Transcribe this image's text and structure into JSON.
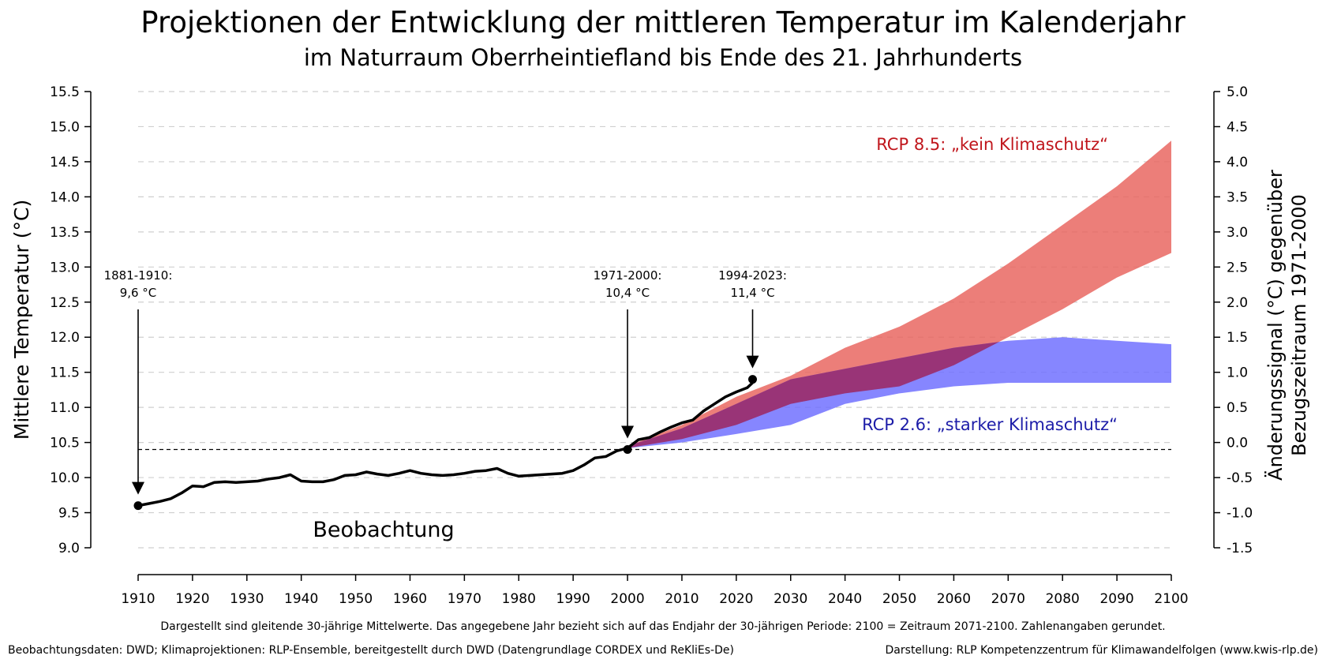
{
  "chart": {
    "title": "Projektionen der Entwicklung der mittleren Temperatur im Kalenderjahr",
    "subtitle": "im Naturraum Oberrheintiefland bis Ende des 21. Jahrhunderts",
    "footnote": "Dargestellt sind gleitende 30-jährige Mittelwerte. Das angegebene Jahr bezieht sich auf das Endjahr der 30-jährigen Periode: 2100 = Zeitraum 2071-2100. Zahlenangaben gerundet.",
    "credit_left": "Beobachtungsdaten: DWD; Klimaprojektionen: RLP-Ensemble, bereitgestellt durch DWD (Datengrundlage CORDEX und ReKliEs-De)",
    "credit_right": "Darstellung: RLP Kompetenzzentrum für Klimawandelfolgen (www.kwis-rlp.de)"
  },
  "colors": {
    "rcp85": "#e8615b",
    "rcp26": "#6b6bff",
    "overlap": "#9b2d6a",
    "observation": "#000000",
    "rcp85_label": "#c0161c",
    "rcp26_label": "#1c1ca8"
  },
  "chart_data": {
    "type": "line",
    "title": "Projektionen der Entwicklung der mittleren Temperatur im Kalenderjahr",
    "subtitle": "im Naturraum Oberrheintiefland bis Ende des 21. Jahrhunderts",
    "ylabel": "Mittlere Temperatur (°C)",
    "y2label_line1": "Änderungssignal (°C) gegenüber",
    "y2label_line2": "Bezugszeitraum 1971-2000",
    "xlim": [
      1910,
      2100
    ],
    "ylim": [
      9.0,
      15.5
    ],
    "y2lim": [
      -1.5,
      5.0
    ],
    "x_ticks": [
      "1910",
      "1920",
      "1930",
      "1940",
      "1950",
      "1960",
      "1970",
      "1980",
      "1990",
      "2000",
      "2010",
      "2020",
      "2030",
      "2040",
      "2050",
      "2060",
      "2070",
      "2080",
      "2090",
      "2100"
    ],
    "y_ticks": [
      "9.0",
      "9.5",
      "10.0",
      "10.5",
      "11.0",
      "11.5",
      "12.0",
      "12.5",
      "13.0",
      "13.5",
      "14.0",
      "14.5",
      "15.0",
      "15.5"
    ],
    "y2_ticks": [
      "-1.5",
      "-1.0",
      "-0.5",
      "0.0",
      "0.5",
      "1.0",
      "1.5",
      "2.0",
      "2.5",
      "3.0",
      "3.5",
      "4.0",
      "4.5",
      "5.0"
    ],
    "grid": "horizontal dashed",
    "reference_line": 10.4,
    "series": [
      {
        "name": "Beobachtung",
        "kind": "line",
        "x": [
          1910,
          1912,
          1914,
          1916,
          1918,
          1920,
          1922,
          1924,
          1926,
          1928,
          1930,
          1932,
          1934,
          1936,
          1938,
          1940,
          1942,
          1944,
          1946,
          1948,
          1950,
          1952,
          1954,
          1956,
          1958,
          1960,
          1962,
          1964,
          1966,
          1968,
          1970,
          1972,
          1974,
          1976,
          1978,
          1980,
          1982,
          1984,
          1986,
          1988,
          1990,
          1992,
          1994,
          1996,
          1998,
          2000,
          2002,
          2004,
          2006,
          2008,
          2010,
          2012,
          2014,
          2016,
          2018,
          2020,
          2022,
          2023
        ],
        "y": [
          9.6,
          9.63,
          9.66,
          9.7,
          9.78,
          9.88,
          9.87,
          9.93,
          9.94,
          9.93,
          9.94,
          9.95,
          9.98,
          10.0,
          10.04,
          9.95,
          9.94,
          9.94,
          9.97,
          10.03,
          10.04,
          10.08,
          10.05,
          10.03,
          10.06,
          10.1,
          10.06,
          10.04,
          10.03,
          10.04,
          10.06,
          10.09,
          10.1,
          10.13,
          10.06,
          10.02,
          10.03,
          10.04,
          10.05,
          10.06,
          10.1,
          10.18,
          10.28,
          10.3,
          10.38,
          10.42,
          10.54,
          10.57,
          10.65,
          10.72,
          10.78,
          10.82,
          10.95,
          11.05,
          11.15,
          11.22,
          11.28,
          11.35
        ]
      },
      {
        "name": "RCP 8.5: „kein Klimaschutz“",
        "kind": "band",
        "x": [
          2000,
          2010,
          2020,
          2030,
          2040,
          2050,
          2060,
          2070,
          2080,
          2090,
          2100
        ],
        "low": [
          10.42,
          10.55,
          10.75,
          11.05,
          11.2,
          11.3,
          11.6,
          12.0,
          12.4,
          12.85,
          13.2
        ],
        "high": [
          10.45,
          10.75,
          11.15,
          11.45,
          11.85,
          12.15,
          12.55,
          13.05,
          13.6,
          14.15,
          14.8
        ]
      },
      {
        "name": "RCP 2.6: „starker Klimaschutz“",
        "kind": "band",
        "x": [
          2000,
          2010,
          2020,
          2030,
          2040,
          2050,
          2060,
          2070,
          2080,
          2090,
          2100
        ],
        "low": [
          10.42,
          10.5,
          10.62,
          10.75,
          11.05,
          11.2,
          11.3,
          11.35,
          11.35,
          11.35,
          11.35
        ],
        "high": [
          10.45,
          10.7,
          11.05,
          11.4,
          11.55,
          11.7,
          11.85,
          11.95,
          12.0,
          11.95,
          11.9
        ]
      }
    ],
    "annotations": [
      {
        "label_line1": "1881-1910:",
        "label_line2": "9,6 °C",
        "x": 1910,
        "value": 9.6
      },
      {
        "label_line1": "1971-2000:",
        "label_line2": "10,4 °C",
        "x": 2000,
        "value": 10.4
      },
      {
        "label_line1": "1994-2023:",
        "label_line2": "11,4 °C",
        "x": 2023,
        "value": 11.4
      }
    ],
    "text_labels": {
      "observation": "Beobachtung",
      "rcp85": "RCP 8.5: „kein Klimaschutz“",
      "rcp26": "RCP 2.6: „starker Klimaschutz“"
    }
  }
}
